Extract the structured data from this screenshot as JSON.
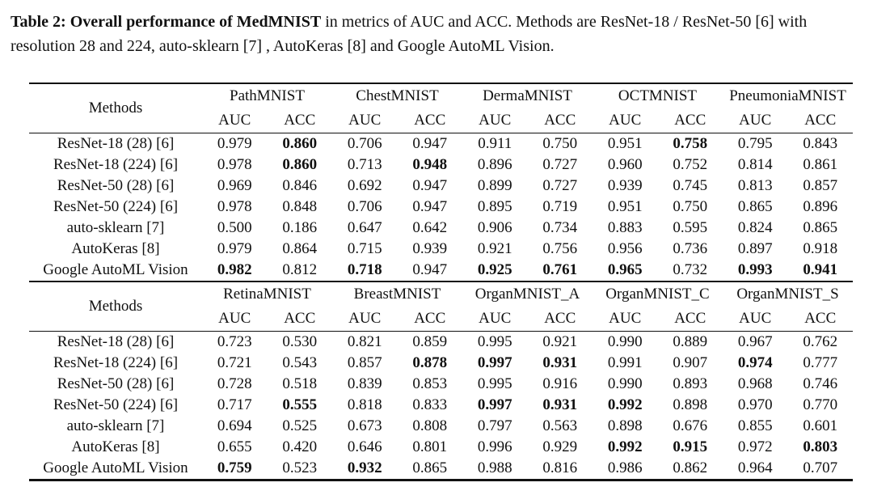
{
  "caption": {
    "bold": "Table 2: Overall performance of MedMNIST",
    "rest": " in metrics of AUC and ACC. Methods are ResNet-18 / ResNet-50 [6] with resolution 28 and 224, auto-sklearn [7] , AutoKeras [8] and Google AutoML Vision."
  },
  "tables": [
    {
      "methods_header": "Methods",
      "metric_labels": [
        "AUC",
        "ACC"
      ],
      "datasets": [
        "PathMNIST",
        "ChestMNIST",
        "DermaMNIST",
        "OCTMNIST",
        "PneumoniaMNIST"
      ],
      "rows": [
        {
          "method": "ResNet-18 (28) [6]",
          "values": [
            "0.979",
            "0.860",
            "0.706",
            "0.947",
            "0.911",
            "0.750",
            "0.951",
            "0.758",
            "0.795",
            "0.843"
          ],
          "bold": [
            1,
            7
          ]
        },
        {
          "method": "ResNet-18 (224) [6]",
          "values": [
            "0.978",
            "0.860",
            "0.713",
            "0.948",
            "0.896",
            "0.727",
            "0.960",
            "0.752",
            "0.814",
            "0.861"
          ],
          "bold": [
            1,
            3
          ]
        },
        {
          "method": "ResNet-50 (28) [6]",
          "values": [
            "0.969",
            "0.846",
            "0.692",
            "0.947",
            "0.899",
            "0.727",
            "0.939",
            "0.745",
            "0.813",
            "0.857"
          ],
          "bold": []
        },
        {
          "method": "ResNet-50 (224) [6]",
          "values": [
            "0.978",
            "0.848",
            "0.706",
            "0.947",
            "0.895",
            "0.719",
            "0.951",
            "0.750",
            "0.865",
            "0.896"
          ],
          "bold": []
        },
        {
          "method": "auto-sklearn [7]",
          "values": [
            "0.500",
            "0.186",
            "0.647",
            "0.642",
            "0.906",
            "0.734",
            "0.883",
            "0.595",
            "0.824",
            "0.865"
          ],
          "bold": []
        },
        {
          "method": "AutoKeras [8]",
          "values": [
            "0.979",
            "0.864",
            "0.715",
            "0.939",
            "0.921",
            "0.756",
            "0.956",
            "0.736",
            "0.897",
            "0.918"
          ],
          "bold": []
        },
        {
          "method": "Google AutoML Vision",
          "values": [
            "0.982",
            "0.812",
            "0.718",
            "0.947",
            "0.925",
            "0.761",
            "0.965",
            "0.732",
            "0.993",
            "0.941"
          ],
          "bold": [
            0,
            2,
            4,
            5,
            6,
            8,
            9
          ]
        }
      ]
    },
    {
      "methods_header": "Methods",
      "metric_labels": [
        "AUC",
        "ACC"
      ],
      "datasets": [
        "RetinaMNIST",
        "BreastMNIST",
        "OrganMNIST_A",
        "OrganMNIST_C",
        "OrganMNIST_S"
      ],
      "rows": [
        {
          "method": "ResNet-18 (28) [6]",
          "values": [
            "0.723",
            "0.530",
            "0.821",
            "0.859",
            "0.995",
            "0.921",
            "0.990",
            "0.889",
            "0.967",
            "0.762"
          ],
          "bold": []
        },
        {
          "method": "ResNet-18 (224) [6]",
          "values": [
            "0.721",
            "0.543",
            "0.857",
            "0.878",
            "0.997",
            "0.931",
            "0.991",
            "0.907",
            "0.974",
            "0.777"
          ],
          "bold": [
            3,
            4,
            5,
            8
          ]
        },
        {
          "method": "ResNet-50 (28) [6]",
          "values": [
            "0.728",
            "0.518",
            "0.839",
            "0.853",
            "0.995",
            "0.916",
            "0.990",
            "0.893",
            "0.968",
            "0.746"
          ],
          "bold": []
        },
        {
          "method": "ResNet-50 (224) [6]",
          "values": [
            "0.717",
            "0.555",
            "0.818",
            "0.833",
            "0.997",
            "0.931",
            "0.992",
            "0.898",
            "0.970",
            "0.770"
          ],
          "bold": [
            1,
            4,
            5,
            6
          ]
        },
        {
          "method": "auto-sklearn [7]",
          "values": [
            "0.694",
            "0.525",
            "0.673",
            "0.808",
            "0.797",
            "0.563",
            "0.898",
            "0.676",
            "0.855",
            "0.601"
          ],
          "bold": []
        },
        {
          "method": "AutoKeras [8]",
          "values": [
            "0.655",
            "0.420",
            "0.646",
            "0.801",
            "0.996",
            "0.929",
            "0.992",
            "0.915",
            "0.972",
            "0.803"
          ],
          "bold": [
            6,
            7,
            9
          ]
        },
        {
          "method": "Google AutoML Vision",
          "values": [
            "0.759",
            "0.523",
            "0.932",
            "0.865",
            "0.988",
            "0.816",
            "0.986",
            "0.862",
            "0.964",
            "0.707"
          ],
          "bold": [
            0,
            2
          ]
        }
      ]
    }
  ],
  "colors": {
    "text": "#111111",
    "background": "#ffffff",
    "rule": "#111111"
  }
}
